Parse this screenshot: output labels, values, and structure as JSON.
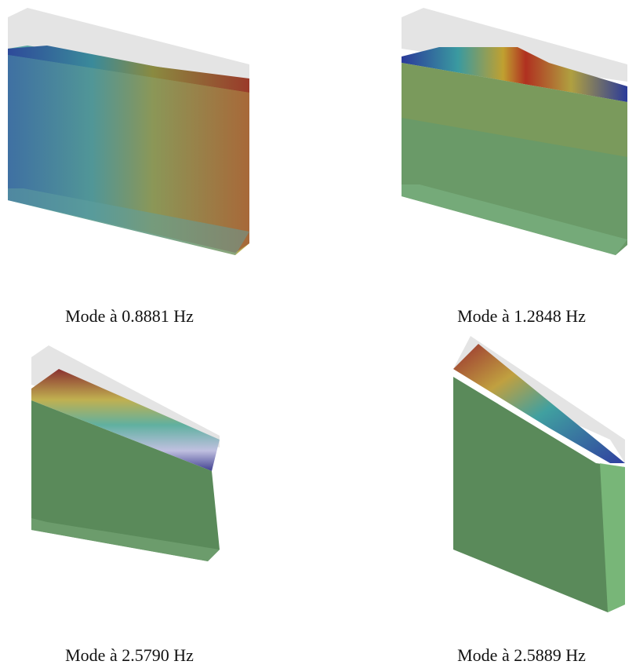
{
  "panels": [
    {
      "caption": "Mode à 0.8881 Hz"
    },
    {
      "caption": "Mode à 1.2848 Hz"
    },
    {
      "caption": "Mode à 2.5790 Hz"
    },
    {
      "caption": "Mode à 2.5889 Hz"
    }
  ]
}
